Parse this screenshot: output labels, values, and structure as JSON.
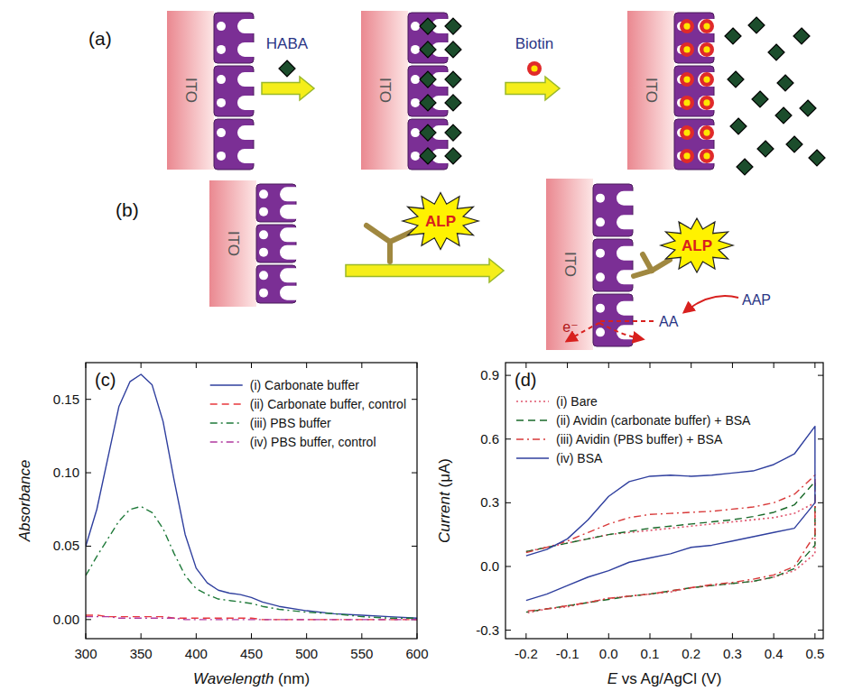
{
  "diagram": {
    "a": {
      "label": "(a)",
      "electrode": "ITO",
      "reagent_1": "HABA",
      "reagent_2": "Biotin"
    },
    "b": {
      "label": "(b)",
      "electrode": "ITO",
      "enzyme": "ALP",
      "substrate": "AAP",
      "product": "AA",
      "electron": "e⁻"
    }
  },
  "chart_data": [
    {
      "type": "line",
      "title": "(c)",
      "x_label": "Wavelength (nm)",
      "y_label": "Absorbance",
      "x": [
        300,
        310,
        320,
        330,
        340,
        350,
        360,
        370,
        380,
        390,
        400,
        410,
        420,
        430,
        440,
        450,
        460,
        475,
        500,
        525,
        550,
        575,
        600
      ],
      "xlim": [
        300,
        600
      ],
      "xticks": [
        300,
        350,
        400,
        450,
        500,
        550,
        600
      ],
      "ylim": [
        -0.013,
        0.175
      ],
      "yticks": [
        {
          "value": 0,
          "label": "0.00"
        },
        {
          "value": 0.05,
          "label": "0.05"
        },
        {
          "value": 0.1,
          "label": "0.10"
        },
        {
          "value": 0.15,
          "label": "0.15"
        }
      ],
      "legend": "upper right",
      "series": [
        {
          "name": "(i) Carbonate buffer",
          "color": "#2f3f9e",
          "line_style": "solid",
          "values": [
            0.05,
            0.075,
            0.11,
            0.145,
            0.162,
            0.167,
            0.16,
            0.135,
            0.095,
            0.058,
            0.035,
            0.025,
            0.02,
            0.018,
            0.017,
            0.015,
            0.012,
            0.009,
            0.006,
            0.004,
            0.003,
            0.002,
            0.001
          ]
        },
        {
          "name": "(ii) Carbonate buffer, control",
          "color": "#e8383d",
          "line_style": "dashed",
          "values": [
            0.003,
            0.003,
            0.002,
            0.002,
            0.002,
            0.002,
            0.002,
            0.002,
            0.001,
            0.001,
            0.001,
            0.001,
            0.001,
            0.001,
            0.001,
            0.001,
            0.0,
            0.0,
            0.0,
            0.0,
            0.0,
            0.0,
            0.0
          ]
        },
        {
          "name": "(iii) PBS buffer",
          "color": "#1f7a3a",
          "line_style": "dash-dot",
          "values": [
            0.03,
            0.043,
            0.055,
            0.067,
            0.075,
            0.077,
            0.073,
            0.062,
            0.045,
            0.03,
            0.021,
            0.017,
            0.014,
            0.013,
            0.012,
            0.011,
            0.009,
            0.007,
            0.005,
            0.004,
            0.002,
            0.001,
            0.001
          ]
        },
        {
          "name": "(iv) PBS buffer, control",
          "color": "#b0389e",
          "line_style": "dash-dot",
          "values": [
            0.002,
            0.002,
            0.002,
            0.001,
            0.001,
            0.001,
            0.001,
            0.001,
            0.001,
            0.0,
            0.0,
            0.0,
            0.0,
            0.0,
            0.0,
            0.0,
            0.0,
            0.0,
            0.0,
            0.0,
            0.0,
            0.0,
            0.0
          ]
        }
      ]
    },
    {
      "type": "line",
      "title": "(d)",
      "x_label": "E vs Ag/AgCl (V)",
      "y_label": "Current (μA)",
      "x": [
        -0.2,
        -0.15,
        -0.1,
        -0.05,
        0,
        0.05,
        0.1,
        0.15,
        0.2,
        0.25,
        0.3,
        0.35,
        0.4,
        0.45,
        0.5,
        0.5,
        0.45,
        0.4,
        0.35,
        0.3,
        0.25,
        0.2,
        0.15,
        0.1,
        0.05,
        0,
        -0.05,
        -0.1,
        -0.15,
        -0.2
      ],
      "xlim": [
        -0.25,
        0.52
      ],
      "xticks": [
        {
          "value": -0.2,
          "label": "-0.2"
        },
        {
          "value": -0.1,
          "label": "-0.1"
        },
        {
          "value": 0,
          "label": "0.0"
        },
        {
          "value": 0.1,
          "label": "0.1"
        },
        {
          "value": 0.2,
          "label": "0.2"
        },
        {
          "value": 0.3,
          "label": "0.3"
        },
        {
          "value": 0.4,
          "label": "0.4"
        },
        {
          "value": 0.5,
          "label": "0.5"
        }
      ],
      "ylim": [
        -0.34,
        0.96
      ],
      "yticks": [
        {
          "value": -0.3,
          "label": "-0.3"
        },
        {
          "value": 0,
          "label": "0.0"
        },
        {
          "value": 0.3,
          "label": "0.3"
        },
        {
          "value": 0.6,
          "label": "0.6"
        },
        {
          "value": 0.9,
          "label": "0.9"
        }
      ],
      "legend": "upper left",
      "series": [
        {
          "name": "(i) Bare",
          "color": "#e0566e",
          "line_style": "dotted",
          "values": [
            0.07,
            0.09,
            0.11,
            0.13,
            0.15,
            0.16,
            0.17,
            0.18,
            0.19,
            0.2,
            0.21,
            0.22,
            0.23,
            0.25,
            0.3,
            0.06,
            -0.02,
            -0.05,
            -0.07,
            -0.08,
            -0.09,
            -0.1,
            -0.12,
            -0.13,
            -0.14,
            -0.15,
            -0.17,
            -0.19,
            -0.2,
            -0.22
          ]
        },
        {
          "name": "(ii) Avidin (carbonate buffer) + BSA",
          "color": "#1a6a2a",
          "line_style": "dashed",
          "values": [
            0.07,
            0.09,
            0.11,
            0.13,
            0.15,
            0.165,
            0.18,
            0.19,
            0.2,
            0.21,
            0.22,
            0.235,
            0.255,
            0.29,
            0.4,
            0.1,
            -0.01,
            -0.05,
            -0.07,
            -0.08,
            -0.09,
            -0.1,
            -0.115,
            -0.13,
            -0.14,
            -0.155,
            -0.17,
            -0.185,
            -0.2,
            -0.215
          ]
        },
        {
          "name": "(iii) Avidin (PBS buffer) + BSA",
          "color": "#d83a3a",
          "line_style": "dash-dot",
          "values": [
            0.065,
            0.09,
            0.12,
            0.16,
            0.2,
            0.23,
            0.245,
            0.25,
            0.255,
            0.26,
            0.27,
            0.28,
            0.3,
            0.34,
            0.43,
            0.15,
            0.0,
            -0.04,
            -0.06,
            -0.075,
            -0.085,
            -0.1,
            -0.115,
            -0.13,
            -0.14,
            -0.15,
            -0.17,
            -0.185,
            -0.2,
            -0.21
          ]
        },
        {
          "name": "(iv) BSA",
          "color": "#2f3f9e",
          "line_style": "solid",
          "values": [
            0.05,
            0.08,
            0.13,
            0.22,
            0.33,
            0.4,
            0.425,
            0.43,
            0.425,
            0.43,
            0.44,
            0.45,
            0.48,
            0.53,
            0.66,
            0.3,
            0.18,
            0.16,
            0.14,
            0.12,
            0.1,
            0.09,
            0.06,
            0.04,
            0.02,
            -0.02,
            -0.05,
            -0.09,
            -0.13,
            -0.16
          ]
        }
      ]
    }
  ]
}
